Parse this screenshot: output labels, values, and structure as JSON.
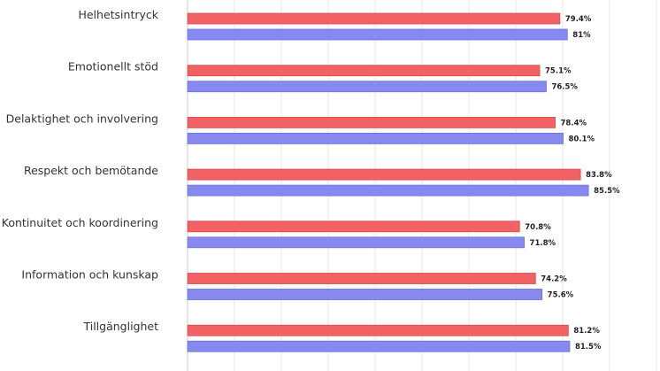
{
  "chart_data": {
    "type": "bar",
    "orientation": "horizontal",
    "categories": [
      "Helhetsintryck",
      "Emotionellt stöd",
      "Delaktighet och involvering",
      "Respekt och bemötande",
      "Kontinuitet och koordinering",
      "Information och kunskap",
      "Tillgänglighet"
    ],
    "series": [
      {
        "color": "#f26164",
        "values": [
          79.4,
          75.1,
          78.4,
          83.8,
          70.8,
          74.2,
          81.2
        ],
        "value_labels": [
          "79.4%",
          "75.1%",
          "78.4%",
          "83.8%",
          "70.8%",
          "74.2%",
          "81.2%"
        ]
      },
      {
        "color": "#8889f0",
        "values": [
          81,
          76.5,
          80.1,
          85.5,
          71.8,
          75.6,
          81.5
        ],
        "value_labels": [
          "81%",
          "76.5%",
          "80.1%",
          "85.5%",
          "71.8%",
          "75.6%",
          "81.5%"
        ]
      }
    ],
    "xlim": [
      0,
      100
    ],
    "grid": true,
    "legend": "none",
    "title": "",
    "xlabel": "",
    "ylabel": ""
  }
}
